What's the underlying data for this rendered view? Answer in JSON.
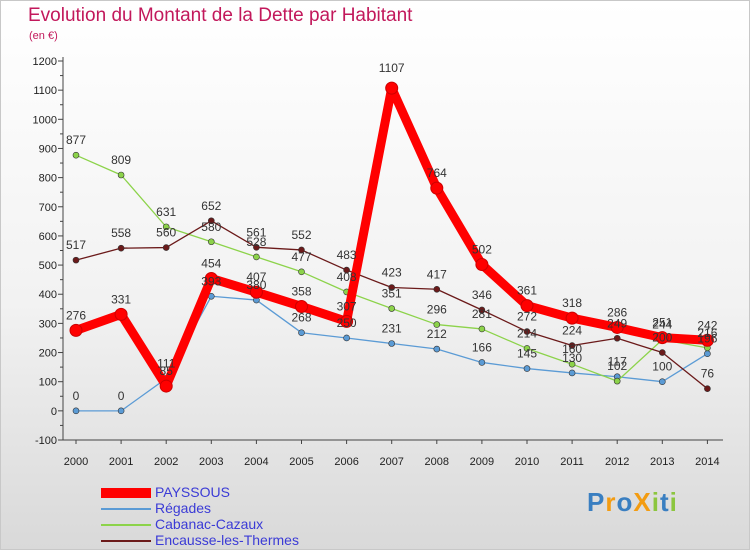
{
  "title": "Evolution du Montant de la Dette par Habitant",
  "unit": "(en €)",
  "brand": "ProXiti",
  "chart_data": {
    "type": "line",
    "x": [
      "2000",
      "2001",
      "2002",
      "2003",
      "2004",
      "2005",
      "2006",
      "2007",
      "2008",
      "2009",
      "2010",
      "2011",
      "2012",
      "2013",
      "2014"
    ],
    "yticks": [
      -100,
      0,
      100,
      200,
      300,
      400,
      500,
      600,
      700,
      800,
      900,
      1000,
      1100,
      1200
    ],
    "ylim": [
      -100,
      1200
    ],
    "grid": false,
    "legend": "bottom-left",
    "series": [
      {
        "name": "Régades",
        "color": "#5b9bd5",
        "values": [
          0,
          0,
          111,
          393,
          380,
          268,
          250,
          231,
          212,
          166,
          145,
          130,
          117,
          100,
          196
        ]
      },
      {
        "name": "Cabanac-Cazaux",
        "color": "#8cd34a",
        "values": [
          877,
          809,
          631,
          580,
          528,
          477,
          408,
          351,
          296,
          281,
          214,
          160,
          102,
          244,
          216
        ]
      },
      {
        "name": "Encausse-les-Thermes",
        "color": "#6b1a1a",
        "values": [
          517,
          558,
          560,
          652,
          561,
          552,
          483,
          423,
          417,
          346,
          272,
          224,
          249,
          200,
          76
        ]
      },
      {
        "name": "PAYSSOUS",
        "color": "#ff0000",
        "values": [
          276,
          331,
          85,
          454,
          407,
          358,
          307,
          1107,
          764,
          502,
          361,
          318,
          286,
          251,
          242
        ]
      }
    ],
    "label_text": [
      [
        "0",
        "0",
        "111",
        "393",
        "380",
        "268",
        "250",
        "231",
        "212",
        "166",
        "145",
        "130",
        "117",
        "100",
        "196"
      ],
      [
        "877",
        "809",
        "631",
        "580",
        "528",
        "477",
        "408",
        "351",
        "296",
        "281",
        "214",
        "160",
        "102",
        "244",
        "216"
      ],
      [
        "517",
        "558",
        "560",
        "652",
        "561",
        "552",
        "483",
        "423",
        "417",
        "346",
        "272",
        "224",
        "249",
        "200",
        "76"
      ],
      [
        "276",
        "331",
        "85",
        "454",
        "407",
        "358",
        "307",
        "1107",
        "764",
        "502",
        "361",
        "318",
        "286",
        "251",
        "242"
      ]
    ]
  }
}
